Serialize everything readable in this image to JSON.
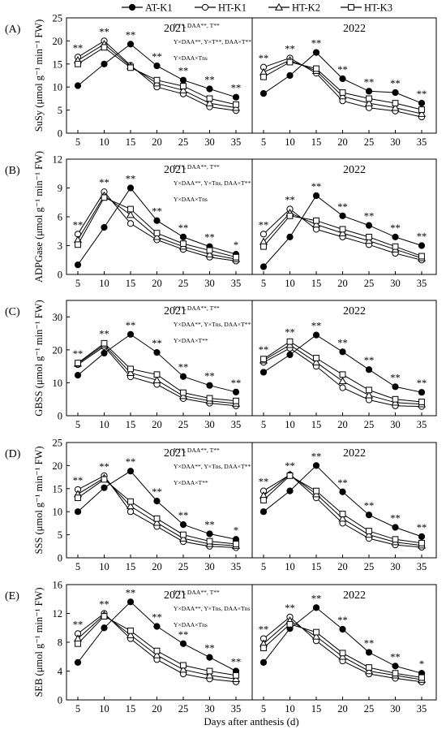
{
  "legend": [
    {
      "name": "AT-K1",
      "marker": "circle-filled"
    },
    {
      "name": "HT-K1",
      "marker": "circle-open"
    },
    {
      "name": "HT-K2",
      "marker": "triangle-open"
    },
    {
      "name": "HT-K3",
      "marker": "square-open"
    }
  ],
  "xlabel": "Days after anthesis (d)",
  "chart_data": [
    {
      "type": "line",
      "panel_label": "(A)",
      "ylabel": "SuSy (μmol g⁻¹ min⁻¹ FW)",
      "ylim": [
        0,
        25
      ],
      "yticks": [
        0,
        5,
        10,
        15,
        20,
        25
      ],
      "x": [
        5,
        10,
        15,
        20,
        25,
        30,
        35
      ],
      "stats": [
        "Y**, DAA**, T**",
        "Y×DAA**, Y×T**, DAA×T**",
        "Y×DAA×Tns"
      ],
      "years": [
        {
          "year": "2021",
          "series": [
            {
              "name": "AT-K1",
              "values": [
                10.3,
                15.0,
                19.3,
                14.6,
                11.5,
                9.6,
                7.8
              ]
            },
            {
              "name": "HT-K1",
              "values": [
                16.5,
                20.0,
                14.7,
                10.0,
                8.5,
                5.7,
                4.9
              ]
            },
            {
              "name": "HT-K2",
              "values": [
                15.8,
                19.3,
                14.5,
                10.8,
                9.3,
                6.5,
                5.5
              ]
            },
            {
              "name": "HT-K3",
              "values": [
                15.0,
                18.6,
                14.2,
                11.5,
                10.2,
                7.5,
                6.2
              ]
            }
          ],
          "sig": [
            "**",
            "**",
            "**",
            "**",
            "**",
            "**",
            "**"
          ]
        },
        {
          "year": "2022",
          "series": [
            {
              "name": "AT-K1",
              "values": [
                8.6,
                12.5,
                17.5,
                11.8,
                9.1,
                8.8,
                6.5
              ]
            },
            {
              "name": "HT-K1",
              "values": [
                14.3,
                16.3,
                13.0,
                7.0,
                5.5,
                4.8,
                3.5
              ]
            },
            {
              "name": "HT-K2",
              "values": [
                13.2,
                15.8,
                13.5,
                8.0,
                6.5,
                5.5,
                4.2
              ]
            },
            {
              "name": "HT-K3",
              "values": [
                12.2,
                15.4,
                14.0,
                8.8,
                7.5,
                6.5,
                5.1
              ]
            }
          ],
          "sig": [
            "**",
            "**",
            "**",
            "**",
            "**",
            "**",
            "**"
          ]
        }
      ]
    },
    {
      "type": "line",
      "panel_label": "(B)",
      "ylabel": "ADPGase (μmol g⁻¹ min⁻¹ FW)",
      "ylim": [
        0,
        12
      ],
      "yticks": [
        0,
        3,
        6,
        9,
        12
      ],
      "x": [
        5,
        10,
        15,
        20,
        25,
        30,
        35
      ],
      "stats": [
        "Y**, DAA**, T**",
        "Y×DAA**, Y×Tns, DAA×T**",
        "Y×DAA×Tns"
      ],
      "years": [
        {
          "year": "2021",
          "series": [
            {
              "name": "AT-K1",
              "values": [
                1.0,
                4.9,
                9.0,
                5.6,
                3.9,
                2.9,
                2.1
              ]
            },
            {
              "name": "HT-K1",
              "values": [
                4.2,
                8.6,
                5.3,
                3.6,
                2.6,
                1.8,
                1.4
              ]
            },
            {
              "name": "HT-K2",
              "values": [
                3.6,
                8.2,
                6.2,
                3.9,
                2.9,
                2.1,
                1.6
              ]
            },
            {
              "name": "HT-K3",
              "values": [
                3.1,
                8.0,
                6.8,
                4.3,
                3.2,
                2.5,
                1.8
              ]
            }
          ],
          "sig": [
            "**",
            "**",
            "**",
            "**",
            "**",
            "**",
            "*"
          ]
        },
        {
          "year": "2022",
          "series": [
            {
              "name": "AT-K1",
              "values": [
                0.8,
                3.9,
                8.2,
                6.1,
                5.1,
                3.9,
                3.0
              ]
            },
            {
              "name": "HT-K1",
              "values": [
                4.2,
                6.8,
                4.7,
                3.9,
                3.1,
                2.2,
                1.5
              ]
            },
            {
              "name": "HT-K2",
              "values": [
                3.4,
                6.4,
                5.2,
                4.3,
                3.5,
                2.6,
                1.7
              ]
            },
            {
              "name": "HT-K3",
              "values": [
                2.9,
                6.1,
                5.6,
                4.7,
                3.9,
                2.9,
                1.9
              ]
            }
          ],
          "sig": [
            "**",
            "**",
            "**",
            "**",
            "**",
            "**",
            "**"
          ]
        }
      ]
    },
    {
      "type": "line",
      "panel_label": "(C)",
      "ylabel": "GBSS (μmol g⁻¹ min⁻¹ FW)",
      "ylim": [
        0,
        35
      ],
      "yticks": [
        0,
        10,
        20,
        30
      ],
      "x": [
        5,
        10,
        15,
        20,
        25,
        30,
        35
      ],
      "stats": [
        "Y**, DAA**, T**",
        "Y×DAA**, Y×Tns, DAA×T**",
        "Y×DAA×T**"
      ],
      "years": [
        {
          "year": "2021",
          "series": [
            {
              "name": "AT-K1",
              "values": [
                12.3,
                19.0,
                24.7,
                19.2,
                11.9,
                9.2,
                7.2
              ]
            },
            {
              "name": "HT-K1",
              "values": [
                15.5,
                21.0,
                11.8,
                9.5,
                5.2,
                3.8,
                3.0
              ]
            },
            {
              "name": "HT-K2",
              "values": [
                15.8,
                21.5,
                13.0,
                10.8,
                6.0,
                4.5,
                3.7
              ]
            },
            {
              "name": "HT-K3",
              "values": [
                16.0,
                22.0,
                14.2,
                12.5,
                7.0,
                5.3,
                4.5
              ]
            }
          ],
          "sig": [
            "**",
            "**",
            "**",
            "**",
            "**",
            "**",
            "**"
          ]
        },
        {
          "year": "2022",
          "series": [
            {
              "name": "AT-K1",
              "values": [
                13.2,
                18.5,
                24.5,
                19.4,
                14.0,
                8.8,
                7.1
              ]
            },
            {
              "name": "HT-K1",
              "values": [
                16.2,
                20.5,
                15.0,
                8.5,
                4.8,
                3.0,
                2.8
              ]
            },
            {
              "name": "HT-K2",
              "values": [
                16.8,
                21.5,
                16.2,
                10.5,
                6.2,
                4.0,
                3.5
              ]
            },
            {
              "name": "HT-K3",
              "values": [
                17.2,
                22.5,
                17.5,
                12.5,
                7.8,
                5.0,
                4.2
              ]
            }
          ],
          "sig": [
            "**",
            "**",
            "**",
            "**",
            "**",
            "**",
            "**"
          ]
        }
      ]
    },
    {
      "type": "line",
      "panel_label": "(D)",
      "ylabel": "SSS (μmol g⁻¹ min⁻¹ FW)",
      "ylim": [
        0,
        25
      ],
      "yticks": [
        0,
        5,
        10,
        15,
        20,
        25
      ],
      "x": [
        5,
        10,
        15,
        20,
        25,
        30,
        35
      ],
      "stats": [
        "Y**, DAA**, T**",
        "Y×DAA**, Y×Tns, DAA×T**",
        "Y×DAA×T**"
      ],
      "years": [
        {
          "year": "2021",
          "series": [
            {
              "name": "AT-K1",
              "values": [
                10.0,
                15.2,
                18.8,
                12.3,
                7.2,
                5.2,
                4.0
              ]
            },
            {
              "name": "HT-K1",
              "values": [
                14.8,
                17.8,
                10.0,
                6.8,
                3.5,
                2.5,
                2.2
              ]
            },
            {
              "name": "HT-K2",
              "values": [
                13.8,
                17.3,
                11.2,
                7.6,
                4.2,
                3.0,
                2.6
              ]
            },
            {
              "name": "HT-K3",
              "values": [
                13.0,
                17.0,
                12.2,
                8.5,
                5.0,
                3.6,
                3.0
              ]
            }
          ],
          "sig": [
            "**",
            "**",
            "**",
            "**",
            "**",
            "**",
            "*"
          ]
        },
        {
          "year": "2022",
          "series": [
            {
              "name": "AT-K1",
              "values": [
                10.0,
                14.5,
                20.0,
                14.3,
                9.3,
                6.6,
                4.6
              ]
            },
            {
              "name": "HT-K1",
              "values": [
                14.5,
                18.0,
                13.0,
                7.5,
                4.2,
                2.8,
                2.3
              ]
            },
            {
              "name": "HT-K2",
              "values": [
                13.5,
                18.0,
                13.8,
                8.5,
                5.0,
                3.4,
                2.7
              ]
            },
            {
              "name": "HT-K3",
              "values": [
                12.5,
                17.8,
                14.5,
                9.5,
                5.8,
                4.0,
                3.2
              ]
            }
          ],
          "sig": [
            "**",
            "**",
            "**",
            "**",
            "**",
            "**",
            "**"
          ]
        }
      ]
    },
    {
      "type": "line",
      "panel_label": "(E)",
      "ylabel": "SEB (μmol g⁻¹ min⁻¹ FW)",
      "ylim": [
        0,
        16
      ],
      "yticks": [
        0,
        4,
        8,
        12,
        16
      ],
      "x": [
        5,
        10,
        15,
        20,
        25,
        30,
        35
      ],
      "stats": [
        "Y**, DAA**, T**",
        "Y×DAA**, Y×Tns, DAA×Tns",
        "Y×DAA×Tns"
      ],
      "years": [
        {
          "year": "2021",
          "series": [
            {
              "name": "AT-K1",
              "values": [
                5.2,
                10.0,
                13.6,
                10.2,
                7.8,
                5.9,
                4.0
              ]
            },
            {
              "name": "HT-K1",
              "values": [
                9.2,
                12.0,
                8.5,
                5.6,
                3.6,
                2.9,
                2.5
              ]
            },
            {
              "name": "HT-K2",
              "values": [
                8.5,
                11.8,
                9.0,
                6.2,
                4.2,
                3.4,
                2.9
              ]
            },
            {
              "name": "HT-K3",
              "values": [
                7.8,
                11.6,
                9.6,
                6.8,
                4.8,
                4.0,
                3.4
              ]
            }
          ],
          "sig": [
            "**",
            "**",
            "**",
            "**",
            "**",
            "**",
            "**"
          ]
        },
        {
          "year": "2022",
          "series": [
            {
              "name": "AT-K1",
              "values": [
                5.2,
                9.9,
                12.8,
                9.8,
                6.6,
                4.7,
                3.7
              ]
            },
            {
              "name": "HT-K1",
              "values": [
                8.5,
                11.5,
                8.2,
                5.4,
                3.6,
                3.0,
                2.5
              ]
            },
            {
              "name": "HT-K2",
              "values": [
                7.8,
                11.0,
                8.8,
                6.0,
                4.0,
                3.4,
                2.8
              ]
            },
            {
              "name": "HT-K3",
              "values": [
                7.2,
                10.5,
                9.4,
                6.5,
                4.5,
                3.7,
                3.1
              ]
            }
          ],
          "sig": [
            "**",
            "**",
            "**",
            "**",
            "**",
            "**",
            "*"
          ]
        }
      ]
    }
  ]
}
